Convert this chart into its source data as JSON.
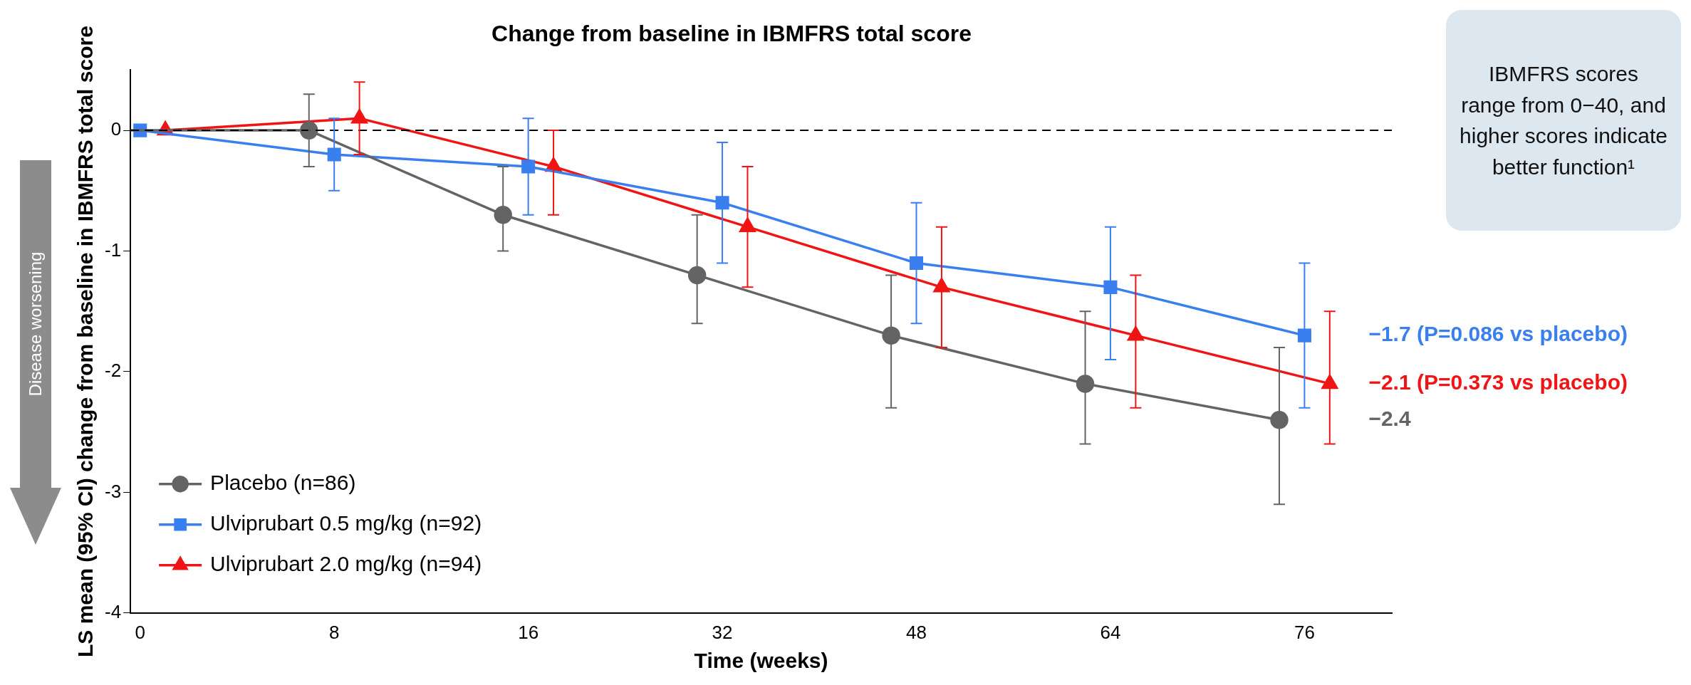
{
  "chart_data": {
    "type": "line",
    "title": "Change from baseline in IBMFRS total score",
    "xlabel": "Time (weeks)",
    "ylabel": "LS mean (95% CI) change from baseline in IBMFRS total score",
    "categories": [
      "0",
      "8",
      "16",
      "32",
      "48",
      "64",
      "76"
    ],
    "series": [
      {
        "name": "Placebo (n=86)",
        "color": "#646464",
        "marker": "circle",
        "values": [
          0,
          0,
          -0.7,
          -1.2,
          -1.7,
          -2.1,
          -2.4
        ],
        "errors": [
          null,
          [
            -0.3,
            0.3
          ],
          [
            -1.0,
            -0.3
          ],
          [
            -1.6,
            -0.7
          ],
          [
            -2.3,
            -1.2
          ],
          [
            -2.6,
            -1.5
          ],
          [
            -3.1,
            -1.8
          ]
        ]
      },
      {
        "name": "Ulviprubart 0.5 mg/kg (n=92)",
        "color": "#3a7ff0",
        "marker": "square",
        "values": [
          0,
          -0.2,
          -0.3,
          -0.6,
          -1.1,
          -1.3,
          -1.7
        ],
        "errors": [
          null,
          [
            -0.5,
            0.1
          ],
          [
            -0.7,
            0.1
          ],
          [
            -1.1,
            -0.1
          ],
          [
            -1.6,
            -0.6
          ],
          [
            -1.9,
            -0.8
          ],
          [
            -2.3,
            -1.1
          ]
        ]
      },
      {
        "name": "Ulviprubart 2.0 mg/kg (n=94)",
        "color": "#f01414",
        "marker": "triangle",
        "values": [
          0,
          0.1,
          -0.3,
          -0.8,
          -1.3,
          -1.7,
          -2.1
        ],
        "errors": [
          null,
          [
            -0.2,
            0.4
          ],
          [
            -0.7,
            0
          ],
          [
            -1.3,
            -0.3
          ],
          [
            -1.8,
            -0.8
          ],
          [
            -2.3,
            -1.2
          ],
          [
            -2.6,
            -1.5
          ]
        ]
      }
    ],
    "ylim": [
      -4,
      0.5
    ],
    "yticks": [
      0,
      -1,
      -2,
      -3,
      -4
    ],
    "grid": false,
    "legend": "bottom left",
    "line_style": "solid",
    "ref_lines": [
      {
        "axis": "y",
        "value": 0,
        "color": "#000000",
        "line_style": "dashed"
      }
    ],
    "annotations": [
      {
        "text": "−1.7 (P=0.086 vs placebo)",
        "x": "76",
        "y": -1.7
      },
      {
        "text": "−2.1 (P=0.373 vs placebo)",
        "x": "76",
        "y": -2.1
      },
      "IBMFRS scores range from 0−40, and higher scores indicate better function¹",
      "Disease worsening",
      "−2.4"
    ]
  }
}
